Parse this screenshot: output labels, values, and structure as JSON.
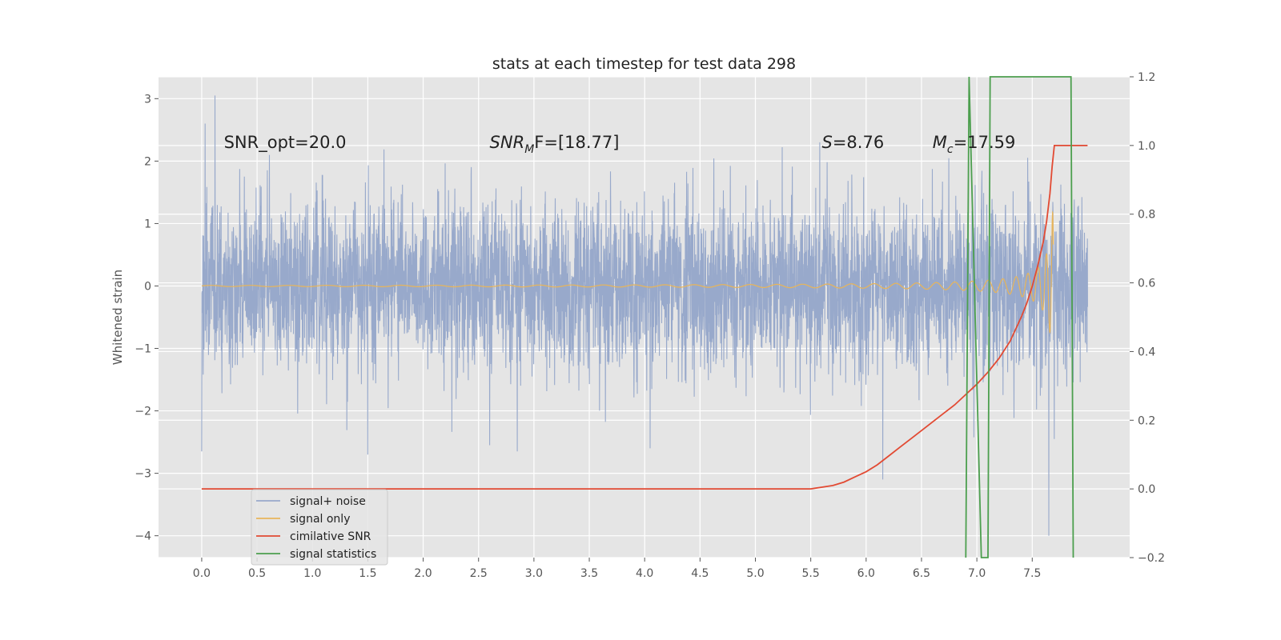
{
  "chart_data": {
    "type": "line",
    "title": "stats at each timestep for test data 298",
    "ylabel": "Whitened strain",
    "ylabel_right": "",
    "xlim": [
      -0.39,
      8.38
    ],
    "ylim": [
      -4.35,
      3.35
    ],
    "ylim_right": [
      -0.2,
      1.2
    ],
    "x_ticks": [
      "0.0",
      "0.5",
      "1.0",
      "1.5",
      "2.0",
      "2.5",
      "3.0",
      "3.5",
      "4.0",
      "4.5",
      "5.0",
      "5.5",
      "6.0",
      "6.5",
      "7.0",
      "7.5"
    ],
    "y_ticks": [
      "−4",
      "−3",
      "−2",
      "−1",
      "0",
      "1",
      "2",
      "3"
    ],
    "y_ticks_right": [
      "−0.2",
      "0.0",
      "0.2",
      "0.4",
      "0.6",
      "0.8",
      "1.0",
      "1.2"
    ],
    "grid": true,
    "legend_position": "lower-left",
    "series": [
      {
        "name": "signal+ noise",
        "color": "#98A9CB",
        "axis": "left",
        "kind": "noise",
        "x_range": [
          0.0,
          8.0
        ],
        "std": 0.68,
        "peaks": [
          [
            0.12,
            3.05
          ],
          [
            0.03,
            2.6
          ],
          [
            0.0,
            -2.65
          ],
          [
            1.5,
            -2.7
          ],
          [
            2.6,
            -2.55
          ],
          [
            2.85,
            -2.65
          ],
          [
            4.05,
            -2.6
          ],
          [
            6.15,
            -3.1
          ],
          [
            7.65,
            -4.0
          ]
        ]
      },
      {
        "name": "signal only",
        "color": "#E8B55A",
        "axis": "left",
        "kind": "chirp",
        "x_range": [
          0.0,
          7.69
        ],
        "t_coalescence": 7.7,
        "peak_amplitude": 2.95
      },
      {
        "name": "cimilative SNR",
        "color": "#E24A33",
        "axis": "right",
        "x": [
          0.0,
          1.0,
          2.0,
          3.0,
          4.0,
          5.0,
          5.5,
          5.6,
          5.7,
          5.8,
          5.9,
          6.0,
          6.1,
          6.2,
          6.3,
          6.4,
          6.5,
          6.6,
          6.7,
          6.8,
          6.9,
          7.0,
          7.1,
          7.2,
          7.3,
          7.4,
          7.45,
          7.5,
          7.55,
          7.6,
          7.63,
          7.66,
          7.68,
          7.7,
          8.0
        ],
        "y": [
          0.0,
          0.0,
          0.0,
          0.0,
          0.0,
          0.0,
          0.0,
          0.005,
          0.01,
          0.02,
          0.035,
          0.05,
          0.07,
          0.095,
          0.12,
          0.145,
          0.17,
          0.195,
          0.22,
          0.245,
          0.275,
          0.305,
          0.34,
          0.38,
          0.43,
          0.5,
          0.54,
          0.59,
          0.65,
          0.72,
          0.78,
          0.86,
          0.94,
          1.0,
          1.0
        ]
      },
      {
        "name": "signal statistics",
        "color": "#4C9F4E",
        "axis": "right",
        "x": [
          6.9,
          6.93,
          7.04,
          7.1,
          7.12,
          7.85,
          7.87
        ],
        "y": [
          -0.2,
          1.2,
          -0.2,
          -0.2,
          1.2,
          1.2,
          -0.2
        ]
      }
    ],
    "annotations": [
      {
        "text": "SNR_opt=20.0",
        "x": 0.2,
        "y": 2.3
      },
      {
        "text": "SNR_MF=[18.77]",
        "x": 2.6,
        "y": 2.3,
        "main": "SNR",
        "sub": "M",
        "tail": "F=[18.77]"
      },
      {
        "text": "S=8.76",
        "x": 5.6,
        "y": 2.3,
        "main": "S",
        "tail": "=8.76"
      },
      {
        "text": "M_c=17.59",
        "x": 6.6,
        "y": 2.3,
        "main": "M",
        "sub": "c",
        "tail": "=17.59"
      }
    ]
  }
}
